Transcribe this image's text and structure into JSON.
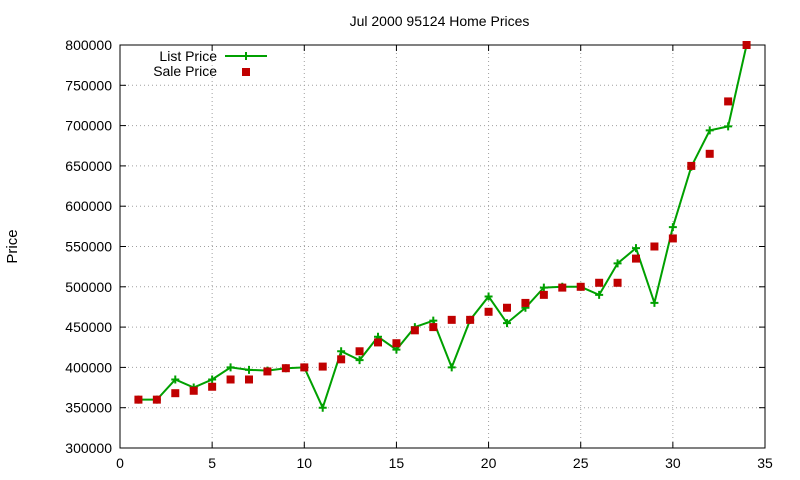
{
  "chart_data": {
    "type": "line",
    "title": "Jul 2000 95124 Home Prices",
    "xlabel": "",
    "ylabel": "Price",
    "xlim": [
      0,
      35
    ],
    "ylim": [
      300000,
      800000
    ],
    "xticks": [
      0,
      5,
      10,
      15,
      20,
      25,
      30,
      35
    ],
    "yticks": [
      300000,
      350000,
      400000,
      450000,
      500000,
      550000,
      600000,
      650000,
      700000,
      750000,
      800000
    ],
    "xtick_labels": [
      "0",
      "5",
      "10",
      "15",
      "20",
      "25",
      "30",
      "35"
    ],
    "ytick_labels": [
      "300000",
      "350000",
      "400000",
      "450000",
      "500000",
      "550000",
      "600000",
      "650000",
      "700000",
      "750000",
      "800000"
    ],
    "grid": true,
    "legend_position": "top-left",
    "series": [
      {
        "name": "List Price",
        "style": "line-with-plus-markers",
        "color": "#00a000",
        "x": [
          1,
          2,
          3,
          4,
          5,
          6,
          7,
          8,
          9,
          10,
          11,
          12,
          13,
          14,
          15,
          16,
          17,
          18,
          19,
          20,
          21,
          22,
          23,
          24,
          25,
          26,
          27,
          28,
          29,
          30,
          31,
          32,
          33,
          34
        ],
        "y": [
          360000,
          360000,
          385000,
          375000,
          385000,
          400000,
          397000,
          396000,
          399000,
          400000,
          350000,
          420000,
          409000,
          438000,
          422000,
          450000,
          458000,
          400000,
          459000,
          488000,
          455000,
          474000,
          499000,
          500000,
          500000,
          490000,
          529000,
          548000,
          480000,
          574000,
          649000,
          694000,
          699000,
          800000
        ]
      },
      {
        "name": "Sale Price",
        "style": "square-markers",
        "color": "#c00000",
        "x": [
          1,
          2,
          3,
          4,
          5,
          6,
          7,
          8,
          9,
          10,
          11,
          12,
          13,
          14,
          15,
          16,
          17,
          18,
          19,
          20,
          21,
          22,
          23,
          24,
          25,
          26,
          27,
          28,
          29,
          30,
          31,
          32,
          33,
          34
        ],
        "y": [
          360000,
          360000,
          368000,
          371000,
          376000,
          385000,
          385000,
          395000,
          399000,
          400000,
          401000,
          410000,
          420000,
          431000,
          430000,
          446000,
          450000,
          459000,
          459000,
          469000,
          474000,
          480000,
          490000,
          499000,
          500000,
          505000,
          505000,
          535000,
          550000,
          560000,
          650000,
          665000,
          730000,
          800000
        ]
      }
    ]
  }
}
